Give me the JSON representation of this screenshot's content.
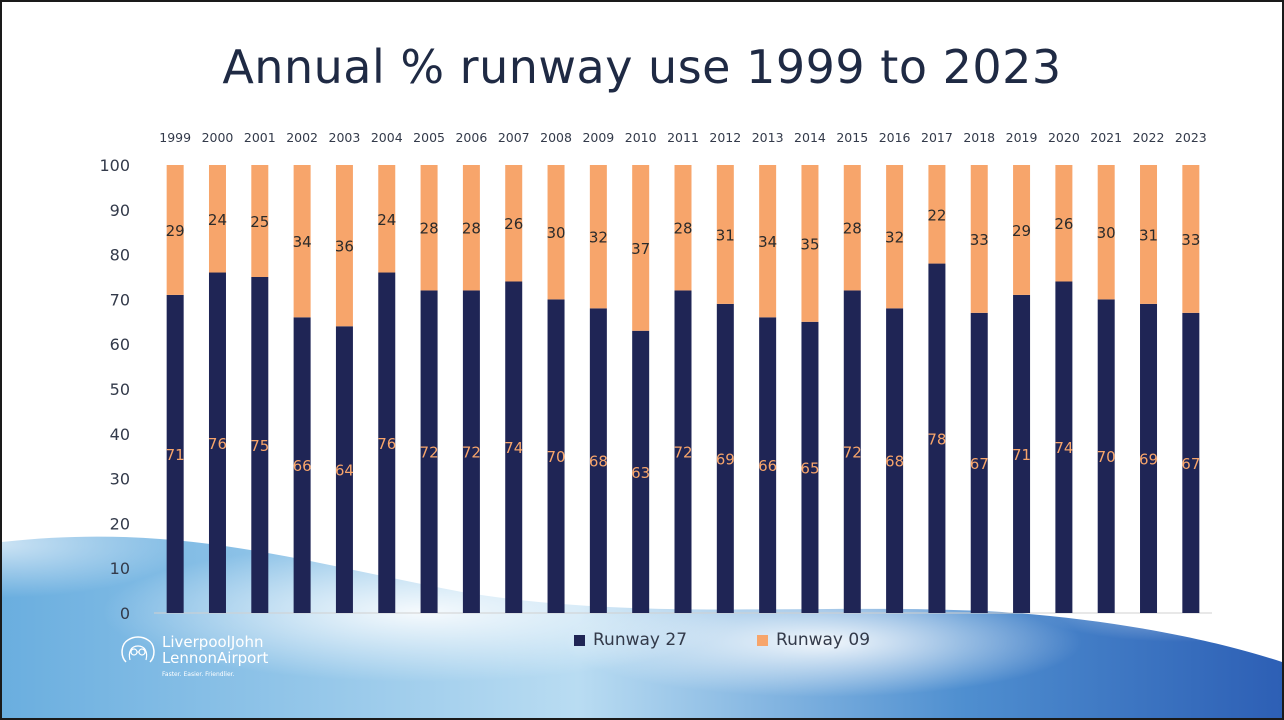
{
  "slide": {
    "title": "Annual % runway use 1999 to 2023"
  },
  "logo": {
    "line1": "LiverpoolJohn",
    "line2": "LennonAirport",
    "tagline": "Faster. Easier. Friendlier."
  },
  "colors": {
    "runway27": "#1f2555",
    "runway09": "#f7a56b",
    "axis_text": "#333a4a",
    "title": "#1f2a44"
  },
  "chart_data": {
    "type": "bar",
    "stacked": true,
    "title": "Annual % runway use 1999 to 2023",
    "categories": [
      "1999",
      "2000",
      "2001",
      "2002",
      "2003",
      "2004",
      "2005",
      "2006",
      "2007",
      "2008",
      "2009",
      "2010",
      "2011",
      "2012",
      "2013",
      "2014",
      "2015",
      "2016",
      "2017",
      "2018",
      "2019",
      "2020",
      "2021",
      "2022",
      "2023"
    ],
    "series": [
      {
        "name": "Runway 27",
        "values": [
          71,
          76,
          75,
          66,
          64,
          76,
          72,
          72,
          74,
          70,
          68,
          63,
          72,
          69,
          66,
          65,
          72,
          68,
          78,
          67,
          71,
          74,
          70,
          69,
          67
        ]
      },
      {
        "name": "Runway 09",
        "values": [
          29,
          24,
          25,
          34,
          36,
          24,
          28,
          28,
          26,
          30,
          32,
          37,
          28,
          31,
          34,
          35,
          28,
          32,
          22,
          33,
          29,
          26,
          30,
          31,
          33
        ]
      }
    ],
    "ylim": [
      0,
      100
    ],
    "yticks": [
      0,
      10,
      20,
      30,
      40,
      50,
      60,
      70,
      80,
      90,
      100
    ],
    "xlabel": "",
    "ylabel": "",
    "x_tick_position": "top",
    "legend_position": "bottom",
    "grid": false,
    "data_labels": true
  }
}
